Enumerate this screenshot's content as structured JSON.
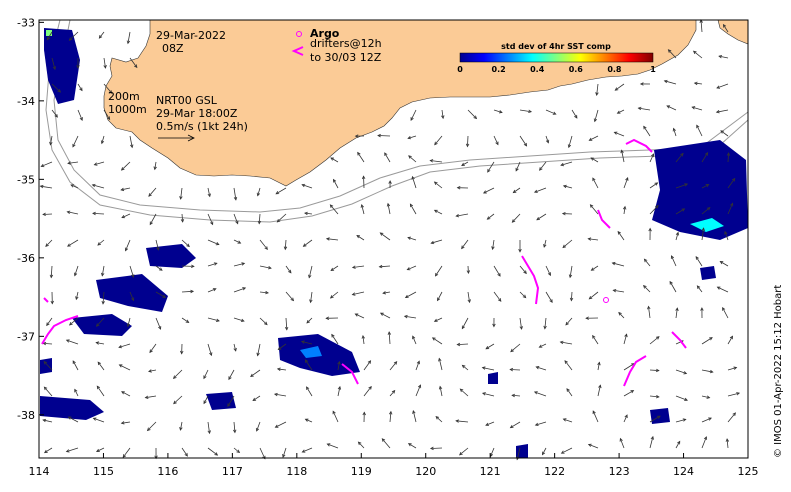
{
  "map": {
    "lon_ticks": [
      "114",
      "115",
      "116",
      "117",
      "118",
      "119",
      "120",
      "121",
      "122",
      "123",
      "124",
      "125"
    ],
    "lat_ticks": [
      "-33",
      "-34",
      "-35",
      "-36",
      "-37",
      "-38"
    ],
    "lon_range": [
      114,
      125
    ],
    "lat_range": [
      -38.55,
      -32.97
    ],
    "land_color": "#fbcb96",
    "ocean_color": "#ffffff"
  },
  "annotations": {
    "obs_date": "29-Mar-2022",
    "obs_time": "08Z",
    "isobath_200": "200m",
    "isobath_1000": "1000m",
    "product": "NRT00 GSL",
    "product_time": "29-Mar 18:00Z",
    "scale_label": "0.5m/s (1kt 24h)"
  },
  "legend": {
    "argo_label": "Argo",
    "drifters_label": "drifters@12h",
    "drifters_window": "to 30/03 12Z",
    "argo_color": "#ff00ff"
  },
  "colorbar": {
    "title": "std dev of 4hr SST comp",
    "ticks": [
      "0",
      "0.2",
      "0.4",
      "0.6",
      "0.8",
      "1"
    ],
    "colors": [
      "#00008f",
      "#0000ff",
      "#0080ff",
      "#00ffff",
      "#80ff80",
      "#ffff00",
      "#ff8000",
      "#ff0000",
      "#800000"
    ]
  },
  "credit": "© IMOS 01-Apr-2022 15:12 Hobart"
}
